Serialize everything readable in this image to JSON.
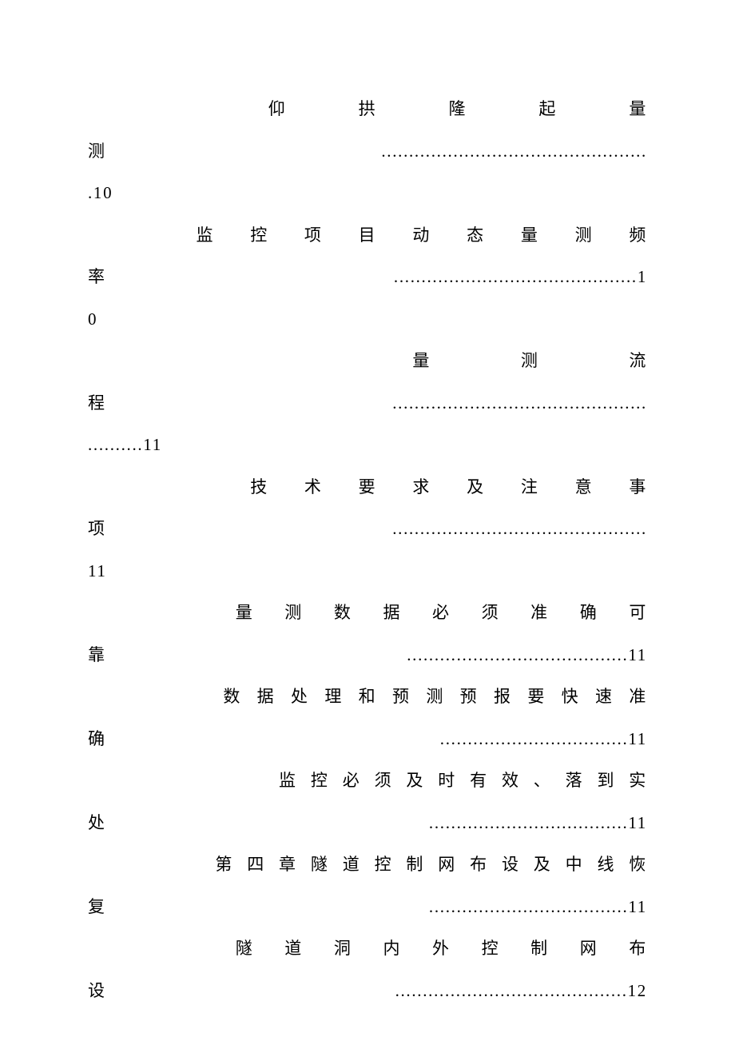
{
  "document": {
    "type": "table-of-contents",
    "font_family": "SimSun",
    "font_size_pt": 16,
    "text_color": "#000000",
    "background_color": "#ffffff",
    "line_height": 2.5,
    "letter_spacing_em": 0.08
  },
  "entries": [
    {
      "title": "仰拱隆起量测",
      "page": "10",
      "indent_chars": 8,
      "title_justified": true,
      "title_spacing": 3,
      "dots": 48,
      "layout": "three-line"
    },
    {
      "title": "监控项目动态量测频率",
      "page": "10",
      "indent_chars": 4,
      "title_justified": true,
      "title_spacing": 1,
      "dots": 44,
      "layout": "three-line-split-page"
    },
    {
      "title": "量测流程",
      "page": "11",
      "indent_chars": 12,
      "title_justified": true,
      "title_spacing": 3,
      "dots": 56,
      "layout": "three-line"
    },
    {
      "title": "技术要求及注意事项",
      "page": "11",
      "indent_chars": 6,
      "title_justified": true,
      "title_spacing": 1,
      "dots": 46,
      "layout": "three-line"
    },
    {
      "title": "量测数据必须准确可靠",
      "page": "11",
      "indent_chars": 6,
      "title_justified": true,
      "title_spacing": 1,
      "dots": 40,
      "layout": "two-line"
    },
    {
      "title": "数据处理和预测预报要快速准确",
      "page": "11",
      "indent_chars": 4,
      "title_justified": true,
      "title_spacing": 0,
      "dots": 34,
      "layout": "two-line"
    },
    {
      "title": "监控必须及时有效、落到实处",
      "page": "11",
      "indent_chars": 6,
      "title_justified": true,
      "title_spacing": 0,
      "dots": 36,
      "layout": "two-line"
    },
    {
      "title": "第四章隧道控制网布设及中线恢复",
      "page": "11",
      "indent_chars": 4,
      "title_justified": false,
      "title_spacing": 0,
      "dots": 36,
      "layout": "two-line"
    },
    {
      "title": "隧道洞内外控制网布设",
      "page": "12",
      "indent_chars": 6,
      "title_justified": true,
      "title_spacing": 1,
      "dots": 42,
      "layout": "two-line"
    }
  ]
}
